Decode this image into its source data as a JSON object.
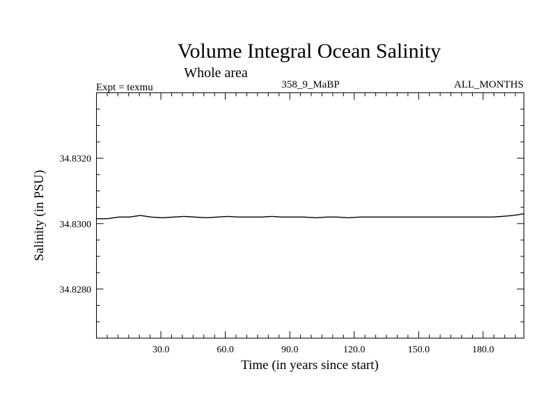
{
  "chart_data": {
    "type": "line",
    "title": "Volume Integral Ocean Salinity",
    "subtitle": "Whole area",
    "experiment": "Expt = texmu",
    "run_id": "358_9_MaBP",
    "period": "ALL_MONTHS",
    "xlabel": "Time (in years since start)",
    "ylabel": "Salinity (in PSU)",
    "xlim": [
      0,
      199
    ],
    "ylim": [
      34.8265,
      34.834
    ],
    "x_ticks": [
      30,
      60,
      90,
      120,
      150,
      180
    ],
    "x_tick_labels": [
      "30.0",
      "60.0",
      "90.0",
      "120.0",
      "150.0",
      "180.0"
    ],
    "y_ticks": [
      34.828,
      34.83,
      34.832
    ],
    "y_tick_labels": [
      "34.8280",
      "34.8300",
      "34.8320"
    ],
    "series": [
      {
        "name": "Salinity",
        "color": "#000000",
        "x_start": 0,
        "x_step": 0.5,
        "mean_values": [
          34.83015,
          34.83015,
          34.8302,
          34.8302,
          34.83025,
          34.8302,
          34.83018,
          34.8302,
          34.83022,
          34.8302,
          34.83018,
          34.8302,
          34.83022,
          34.8302,
          34.8302,
          34.8302,
          34.83022,
          34.8302,
          34.8302,
          34.8302,
          34.83018,
          34.8302,
          34.8302,
          34.83018,
          34.8302,
          34.8302,
          34.8302,
          34.8302,
          34.8302,
          34.8302,
          34.8302,
          34.8302,
          34.8302,
          34.8302,
          34.8302,
          34.8302,
          34.8302,
          34.83022,
          34.83025,
          34.8303
        ],
        "half_amplitude": [
          0.00012,
          0.00015,
          0.00016,
          0.00018,
          0.00022,
          0.00024,
          0.00022,
          0.00018,
          0.00016,
          0.00018,
          0.0002,
          0.00018,
          0.0002,
          0.00022,
          0.00018,
          0.00016,
          0.00018,
          0.0002,
          0.00016,
          0.00015,
          0.00014,
          0.00014,
          0.00013,
          0.00014,
          0.00014,
          0.00013,
          0.00013,
          0.00012,
          0.00012,
          0.00013,
          0.00012,
          0.00012,
          0.00012,
          0.00013,
          0.00014,
          0.00016,
          0.00018,
          0.0002,
          0.00022,
          0.00024
        ]
      }
    ]
  }
}
